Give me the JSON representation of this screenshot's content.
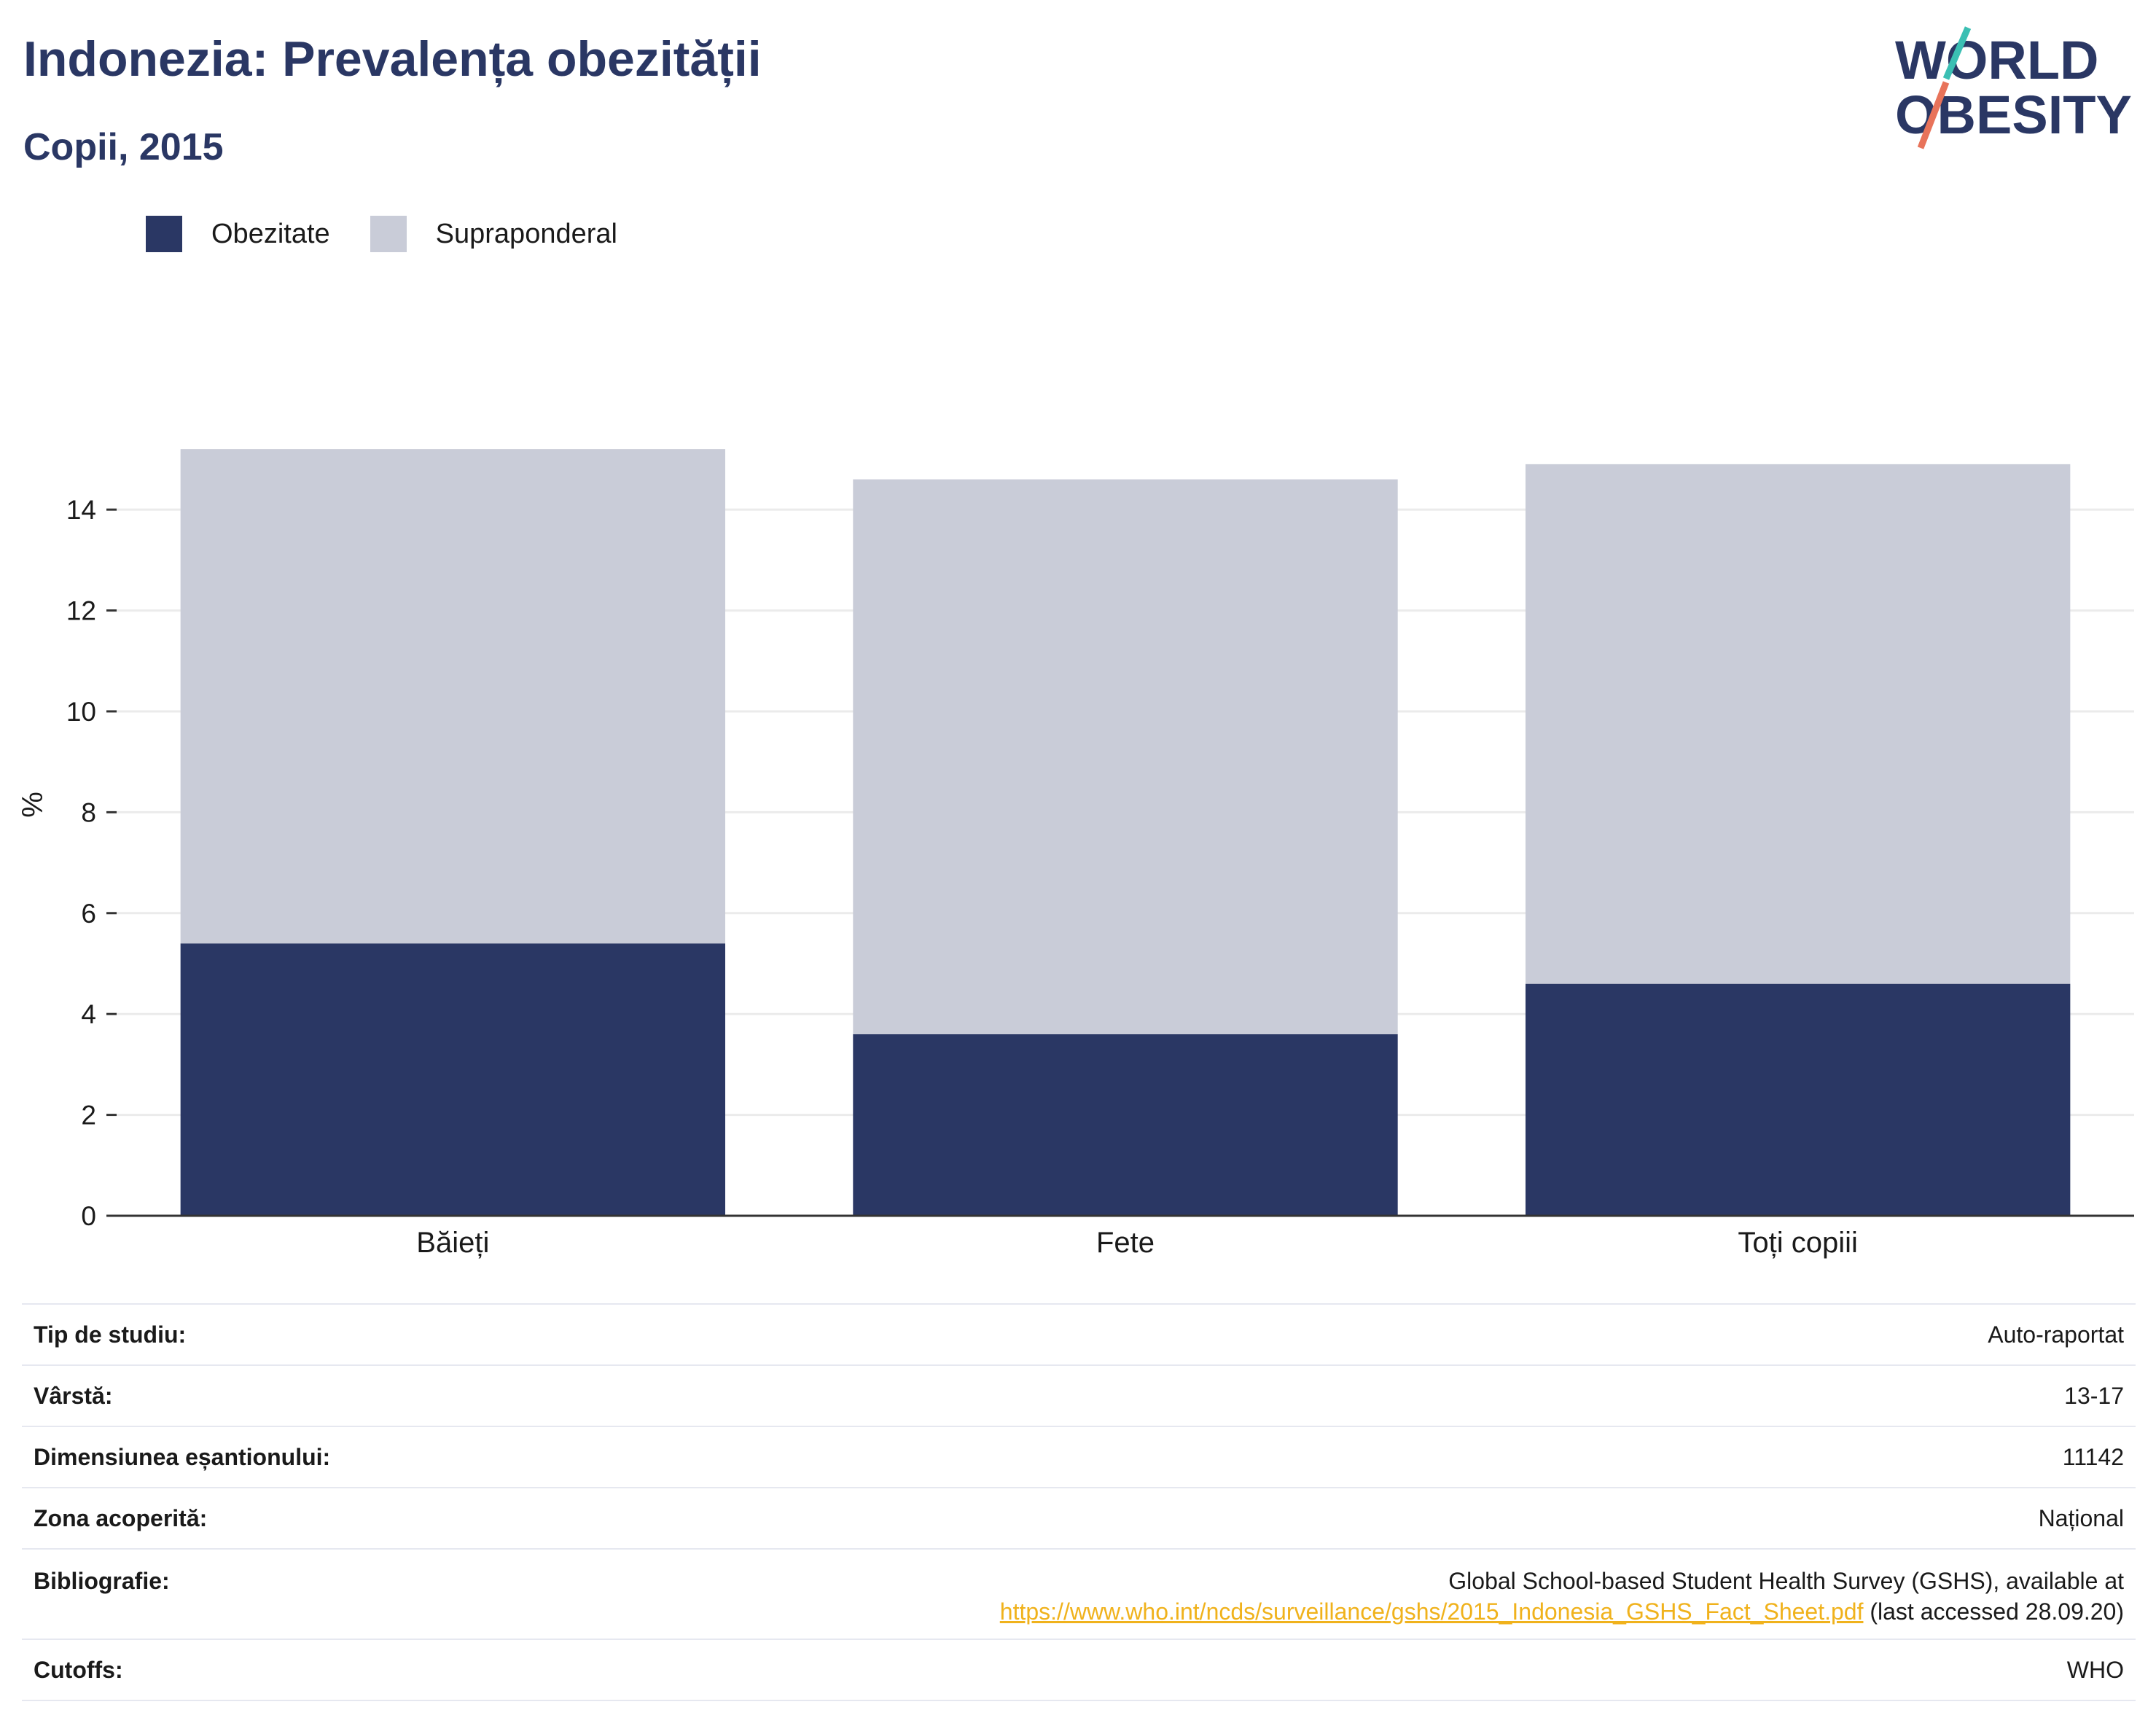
{
  "chart_data": {
    "type": "bar",
    "stacked": true,
    "title": "Indonezia: Prevalența obezității",
    "subtitle": "Copii, 2015",
    "ylabel": "%",
    "categories": [
      "Băieți",
      "Fete",
      "Toți copiii"
    ],
    "series": [
      {
        "name": "Obezitate",
        "color": "#2a3764",
        "values": [
          5.4,
          3.6,
          4.6
        ]
      },
      {
        "name": "Supraponderal",
        "color": "#c9ccd8",
        "values": [
          9.8,
          11.0,
          10.3
        ]
      }
    ],
    "yticks": [
      0,
      2,
      4,
      6,
      8,
      10,
      12,
      14
    ],
    "ylim": [
      0,
      16.3
    ],
    "grid": true,
    "legend": "top-left"
  },
  "logo": {
    "line1": "WORLD",
    "line2": "OBESITY"
  },
  "table": [
    {
      "key": "Tip de studiu:",
      "value": "Auto-raportat"
    },
    {
      "key": "Vârstă:",
      "value": "13-17"
    },
    {
      "key": "Dimensiunea eșantionului:",
      "value": "11142"
    },
    {
      "key": "Zona acoperită:",
      "value": "Național"
    },
    {
      "key": "Bibliografie:",
      "value_line1": "Global School-based Student Health Survey (GSHS), available at",
      "link": "https://www.who.int/ncds/surveillance/gshs/2015_Indonesia_GSHS_Fact_Sheet.pdf",
      "value_suffix": " (last accessed 28.09.20)"
    },
    {
      "key": "Cutoffs:",
      "value": "WHO"
    }
  ]
}
